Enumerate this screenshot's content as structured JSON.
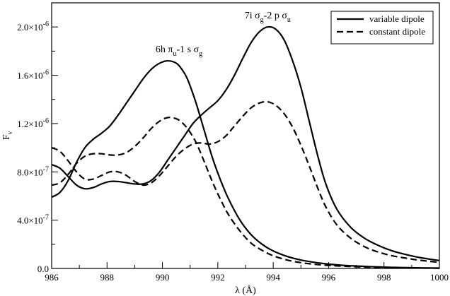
{
  "chart_data": {
    "type": "line",
    "title": "",
    "xlabel": "λ (Å)",
    "ylabel": "Fν",
    "xlim": [
      986,
      1000
    ],
    "ylim": [
      0,
      2.2e-06
    ],
    "grid": false,
    "legend_position": "top-right",
    "x_ticks": [
      {
        "value": 986,
        "label": "986"
      },
      {
        "value": 988,
        "label": "988"
      },
      {
        "value": 990,
        "label": "990"
      },
      {
        "value": 992,
        "label": "992"
      },
      {
        "value": 994,
        "label": "994"
      },
      {
        "value": 996,
        "label": "996"
      },
      {
        "value": 998,
        "label": "998"
      },
      {
        "value": 1000,
        "label": "1000"
      }
    ],
    "y_ticks": [
      {
        "value": 0,
        "mant": "0.0",
        "exp": ""
      },
      {
        "value": 4e-07,
        "mant": "4.0×10",
        "exp": "-7"
      },
      {
        "value": 8e-07,
        "mant": "8.0×10",
        "exp": "-7"
      },
      {
        "value": 1.2e-06,
        "mant": "1.2×10",
        "exp": "-6"
      },
      {
        "value": 1.6e-06,
        "mant": "1.6×10",
        "exp": "-6"
      },
      {
        "value": 2e-06,
        "mant": "2.0×10",
        "exp": "-6"
      }
    ],
    "annotations": [
      {
        "name": "6h-pi-u-1s-sigma-g",
        "x": 990.6,
        "y": 1.79e-06,
        "text": "6h π",
        "sub1": "u",
        "mid": "-1 s σ",
        "sub2": "g"
      },
      {
        "name": "7i-sigma-g-2p-sigma-u",
        "x": 993.8,
        "y": 2.07e-06,
        "text": "7i σ",
        "sub1": "g",
        "mid": "-2 p σ",
        "sub2": "u"
      }
    ],
    "series": [
      {
        "name": "variable dipole",
        "style": "solid",
        "x": [
          986,
          986.3,
          986.6,
          986.9,
          987.2,
          987.5,
          987.8,
          988.1,
          988.4,
          988.7,
          989.0,
          989.3,
          989.6,
          989.9,
          990.2,
          990.5,
          990.7,
          990.9,
          991.2,
          991.5,
          991.8,
          992.1,
          992.4,
          992.8,
          993.2,
          993.6,
          994.0,
          994.5,
          995.0,
          995.5,
          996.0,
          996.5,
          997.0,
          997.5,
          998.0,
          998.5,
          999.0,
          999.5,
          1000
        ],
        "values": [
          5.9e-07,
          6.3e-07,
          7.3e-07,
          8.8e-07,
          1e-06,
          1.07e-06,
          1.12e-06,
          1.18e-06,
          1.27e-06,
          1.37e-06,
          1.47e-06,
          1.57e-06,
          1.65e-06,
          1.7e-06,
          1.72e-06,
          1.7e-06,
          1.65e-06,
          1.57e-06,
          1.38e-06,
          1.15e-06,
          9.2e-07,
          7.3e-07,
          5.7e-07,
          4e-07,
          2.8e-07,
          2e-07,
          1.45e-07,
          1e-07,
          7e-08,
          5e-08,
          3.6e-08,
          2.6e-08,
          2e-08,
          1.5e-08,
          1.1e-08,
          8e-09,
          6e-09,
          4e-09,
          3e-09
        ]
      },
      {
        "name": "variable dipole",
        "style": "solid",
        "x": [
          986,
          986.3,
          986.6,
          986.9,
          987.2,
          987.5,
          987.8,
          988.1,
          988.4,
          988.7,
          989.0,
          989.3,
          989.6,
          989.9,
          990.2,
          990.5,
          990.8,
          991.1,
          991.4,
          991.7,
          992.0,
          992.3,
          992.6,
          992.9,
          993.2,
          993.5,
          993.8,
          994.1,
          994.4,
          994.7,
          995.0,
          995.3,
          995.6,
          995.9,
          996.3,
          996.8,
          997.3,
          997.8,
          998.3,
          998.8,
          999.3,
          1000
        ],
        "values": [
          8.6e-07,
          8.3e-07,
          7.6e-07,
          6.9e-07,
          6.6e-07,
          6.7e-07,
          7e-07,
          7.2e-07,
          7.2e-07,
          7.1e-07,
          7e-07,
          7e-07,
          7.3e-07,
          8e-07,
          9e-07,
          1e-06,
          1.1e-06,
          1.2e-06,
          1.27e-06,
          1.33e-06,
          1.39e-06,
          1.48e-06,
          1.6e-06,
          1.74e-06,
          1.87e-06,
          1.96e-06,
          2e-06,
          1.98e-06,
          1.89e-06,
          1.72e-06,
          1.5e-06,
          1.22e-06,
          9.4e-07,
          7e-07,
          4.9e-07,
          3.4e-07,
          2.5e-07,
          1.9e-07,
          1.45e-07,
          1.15e-07,
          9e-08,
          6.5e-08
        ]
      },
      {
        "name": "constant dipole",
        "style": "dashed",
        "x": [
          986,
          986.3,
          986.6,
          986.9,
          987.2,
          987.5,
          987.8,
          988.1,
          988.4,
          988.7,
          989.0,
          989.3,
          989.6,
          989.9,
          990.2,
          990.5,
          990.7,
          990.9,
          991.2,
          991.5,
          991.8,
          992.1,
          992.4,
          992.8,
          993.2,
          993.6,
          994.0,
          994.5,
          995.0,
          995.5,
          996.0,
          996.5,
          997.0,
          997.5,
          998.0,
          998.5,
          999.0,
          999.5,
          1000
        ],
        "values": [
          6.9e-07,
          7.1e-07,
          7.8e-07,
          8.7e-07,
          9.3e-07,
          9.5e-07,
          9.5e-07,
          9.4e-07,
          9.4e-07,
          9.6e-07,
          1.01e-06,
          1.08e-06,
          1.16e-06,
          1.22e-06,
          1.25e-06,
          1.24e-06,
          1.21e-06,
          1.16e-06,
          1.05e-06,
          8.9e-07,
          7.2e-07,
          5.7e-07,
          4.4e-07,
          3.1e-07,
          2.1e-07,
          1.5e-07,
          1.05e-07,
          7e-08,
          4.8e-08,
          3.4e-08,
          2.5e-08,
          1.9e-08,
          1.4e-08,
          1e-08,
          8e-09,
          6e-09,
          4e-09,
          3e-09,
          2e-09
        ]
      },
      {
        "name": "constant dipole",
        "style": "dashed",
        "x": [
          986,
          986.3,
          986.6,
          986.9,
          987.2,
          987.5,
          987.8,
          988.1,
          988.4,
          988.7,
          989.0,
          989.3,
          989.6,
          989.9,
          990.2,
          990.5,
          990.8,
          991.1,
          991.4,
          991.7,
          992.0,
          992.3,
          992.6,
          992.9,
          993.2,
          993.5,
          993.8,
          994.1,
          994.4,
          994.7,
          995.0,
          995.3,
          995.6,
          995.9,
          996.3,
          996.8,
          997.3,
          997.8,
          998.3,
          998.8,
          999.3,
          1000
        ],
        "values": [
          1e-06,
          9.7e-07,
          8.9e-07,
          8e-07,
          7.4e-07,
          7.4e-07,
          7.7e-07,
          8e-07,
          8e-07,
          7.7e-07,
          7.2e-07,
          6.9e-07,
          7.1e-07,
          7.7e-07,
          8.5e-07,
          9.3e-07,
          9.9e-07,
          1.03e-06,
          1.04e-06,
          1.03e-06,
          1.05e-06,
          1.1e-06,
          1.18e-06,
          1.26e-06,
          1.33e-06,
          1.37e-06,
          1.38e-06,
          1.35e-06,
          1.28e-06,
          1.17e-06,
          1.02e-06,
          8.5e-07,
          6.7e-07,
          5.1e-07,
          3.6e-07,
          2.5e-07,
          1.8e-07,
          1.35e-07,
          1.05e-07,
          8.5e-08,
          6.8e-08,
          5e-08
        ]
      }
    ],
    "legend": [
      {
        "label": "variable dipole",
        "style": "solid"
      },
      {
        "label": "constant dipole",
        "style": "dashed"
      }
    ]
  }
}
